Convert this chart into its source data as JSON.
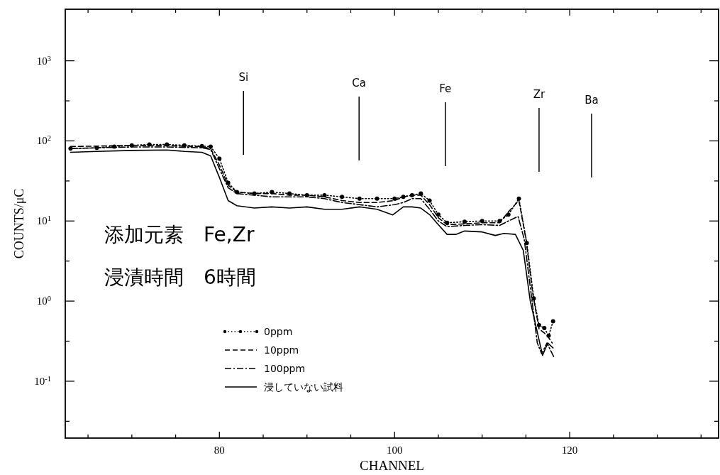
{
  "chart_data": {
    "type": "line",
    "xlabel": "CHANNEL",
    "ylabel": "COUNTS/μC",
    "log": "y",
    "grid": false,
    "legend": "bottom left",
    "xlim": [
      62.4,
      137
    ],
    "ylim": [
      0.0195,
      4400
    ],
    "xticks": [
      {
        "value": 65,
        "label": null
      },
      {
        "value": 70,
        "label": null
      },
      {
        "value": 75,
        "label": null
      },
      80,
      {
        "value": 85,
        "label": null
      },
      {
        "value": 90,
        "label": null
      },
      {
        "value": 95,
        "label": null
      },
      100,
      {
        "value": 105,
        "label": null
      },
      {
        "value": 110,
        "label": null
      },
      {
        "value": 115,
        "label": null
      },
      120,
      {
        "value": 125,
        "label": null
      },
      {
        "value": 130,
        "label": null
      },
      {
        "value": 135,
        "label": null
      }
    ],
    "yticks": [
      {
        "value": 0.0316,
        "label": null
      },
      {
        "value": 0.1,
        "label": "10$^{-1}$"
      },
      {
        "value": 0.316,
        "label": null
      },
      {
        "value": 1,
        "label": "10$^{0}$"
      },
      {
        "value": 3.16,
        "label": null
      },
      {
        "value": 10,
        "label": "10$^{1}$"
      },
      {
        "value": 31.6,
        "label": null
      },
      {
        "value": 100,
        "label": "10$^{2}$"
      },
      {
        "value": 316,
        "label": null
      },
      {
        "value": 1000,
        "label": "10$^{3}$"
      }
    ],
    "series": [
      {
        "name": "0ppm",
        "color": "#000000",
        "line_style": "dotted",
        "marker": "circle",
        "x": [
          63,
          66,
          68,
          70,
          72,
          74,
          76,
          78,
          79,
          80,
          81,
          82,
          84,
          86,
          88,
          90,
          92,
          94,
          96,
          98,
          100,
          101,
          102,
          103,
          104,
          105,
          106,
          108,
          110,
          112,
          113,
          114.2,
          115.1,
          115.9,
          116.5,
          117.1,
          117.6,
          118.1
        ],
        "values": [
          80,
          82,
          85,
          88,
          90,
          90,
          88,
          86,
          85,
          60,
          30,
          23,
          22,
          23,
          22,
          21,
          21,
          20,
          19,
          19,
          19,
          20,
          21,
          22,
          18,
          12,
          9.5,
          9.8,
          10,
          10,
          12,
          19,
          5.3,
          1.08,
          0.5,
          0.46,
          0.37,
          0.56
        ]
      },
      {
        "name": "10ppm",
        "color": "#000000",
        "line_style": "dashed",
        "x": [
          63,
          66,
          70,
          74,
          78,
          79,
          80,
          81,
          82,
          84,
          86,
          88,
          90,
          92,
          94,
          96,
          98,
          100,
          101,
          102,
          103,
          104,
          105,
          106,
          108,
          110,
          112,
          113,
          114.2,
          115,
          115.8,
          116.5,
          117.1,
          117.6,
          118
        ],
        "values": [
          85,
          86,
          88,
          87,
          85,
          80,
          50,
          28,
          23,
          22,
          22,
          21,
          21,
          20,
          18,
          17,
          17,
          18,
          20,
          21,
          21,
          16,
          11,
          9,
          9.2,
          9.5,
          9.5,
          13,
          18,
          6,
          1.2,
          0.45,
          0.4,
          0.35,
          0.3
        ]
      },
      {
        "name": "100ppm",
        "color": "#000000",
        "line_style": "dashdot",
        "x": [
          63,
          66,
          70,
          74,
          78,
          79,
          80,
          81,
          82,
          84,
          86,
          88,
          90,
          92,
          94,
          96,
          98,
          100,
          101,
          102,
          103,
          104,
          105,
          106,
          108,
          110,
          112,
          113,
          114.1,
          114.8,
          115.5,
          116.3,
          116.8,
          117.4,
          118.2
        ],
        "values": [
          80,
          82,
          84,
          84,
          82,
          78,
          45,
          26,
          22,
          21,
          20,
          20,
          20,
          19,
          17,
          16,
          15,
          16,
          17,
          19,
          19,
          14,
          10,
          8.5,
          8.8,
          9,
          8.8,
          10,
          11.4,
          6,
          1.5,
          0.3,
          0.22,
          0.3,
          0.2
        ]
      },
      {
        "name": "浸していない試料",
        "color": "#000000",
        "line_style": "solid",
        "x": [
          63,
          66,
          70,
          74,
          76,
          78,
          79,
          80,
          81,
          82,
          84,
          86,
          88,
          90,
          92,
          94,
          96,
          98,
          99.8,
          101,
          102,
          103,
          104,
          105,
          106,
          107,
          108,
          110,
          111.5,
          112.5,
          113.8,
          114.7,
          115.5,
          116.9,
          117.5,
          118.1
        ],
        "values": [
          72,
          74,
          76,
          77,
          74,
          72,
          65,
          35,
          18,
          15.5,
          14.5,
          15,
          14.5,
          15,
          14,
          14,
          15,
          14,
          11.9,
          15,
          15,
          14.5,
          12,
          9,
          6.8,
          6.8,
          7.5,
          7.3,
          6.6,
          7,
          6.8,
          4.3,
          1.0,
          0.21,
          0.3,
          0.26
        ]
      }
    ],
    "ref_lines": [
      {
        "axis": "x",
        "value": 82.75,
        "label": "Si"
      },
      {
        "axis": "x",
        "value": 95.95,
        "label": "Ca"
      },
      {
        "axis": "x",
        "value": 105.8,
        "label": "Fe"
      },
      {
        "axis": "x",
        "value": 116.5,
        "label": "Zr"
      },
      {
        "axis": "x",
        "value": 122.5,
        "label": "Ba"
      }
    ],
    "annotations": [
      "添加元素　Fe,Zr",
      "浸漬時間　6時間"
    ]
  }
}
